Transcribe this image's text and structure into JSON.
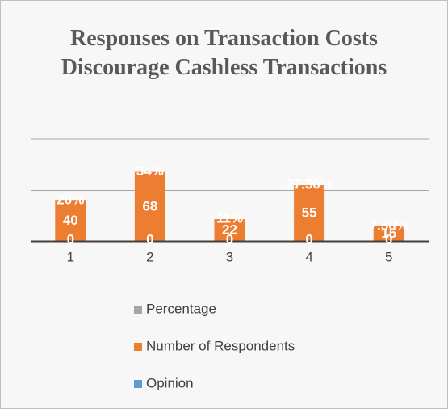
{
  "chart_data": {
    "type": "bar",
    "title": "Responses on Transaction Costs Discourage Cashless Transactions",
    "categories": [
      "1",
      "2",
      "3",
      "4",
      "5"
    ],
    "series": [
      {
        "name": "Percentage",
        "color": "#a5a5a5",
        "values": [
          0.2,
          0.34,
          0.11,
          0.275,
          0.075
        ],
        "value_labels": [
          "20%",
          "34%",
          "11%",
          "27.50%",
          "7.50%"
        ]
      },
      {
        "name": "Number of Respondents",
        "color": "#ed7d31",
        "values": [
          40,
          68,
          22,
          55,
          15
        ]
      },
      {
        "name": "Opinion",
        "color": "#5b9bd5",
        "values": [
          0,
          0,
          0,
          0,
          0
        ]
      }
    ],
    "ylim": [
      0,
      100
    ],
    "yticks": [
      0,
      50,
      100
    ],
    "grid": true
  }
}
